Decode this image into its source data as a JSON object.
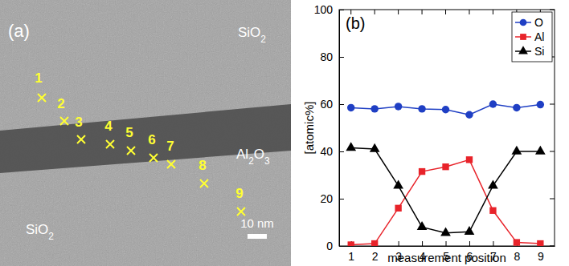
{
  "image_panel": {
    "panel_label": "(a)",
    "regions": [
      {
        "label": "SiO2"
      },
      {
        "label": "Al2O3"
      },
      {
        "label": "SiO2"
      }
    ],
    "points": [
      "1",
      "2",
      "3",
      "4",
      "5",
      "6",
      "7",
      "8",
      "9"
    ],
    "scale_bar": "10 nm"
  },
  "chart_data": {
    "type": "line",
    "title": "(b)",
    "x_label": "measurement position",
    "y_label": "[atomic%]",
    "x": [
      1,
      2,
      3,
      4,
      5,
      6,
      7,
      8,
      9
    ],
    "series": [
      {
        "name": "O",
        "color": "#1f3fc4",
        "marker": "circle",
        "line_style": "solid",
        "values": [
          58.5,
          58,
          59,
          58,
          57.7,
          55.5,
          60,
          58.5,
          59.8
        ]
      },
      {
        "name": "Al",
        "color": "#e8232a",
        "marker": "square",
        "line_style": "solid",
        "values": [
          0.5,
          1,
          16,
          31.5,
          33.5,
          36.5,
          15,
          1.5,
          1
        ]
      },
      {
        "name": "Si",
        "color": "#000000",
        "marker": "triangle",
        "line_style": "solid",
        "values": [
          41.5,
          41,
          25.5,
          8,
          5.5,
          6,
          25.5,
          40,
          40
        ]
      }
    ],
    "xlim": [
      0.5,
      9.6
    ],
    "xticks": [
      1,
      2,
      3,
      4,
      5,
      6,
      7,
      8,
      9
    ],
    "ylim": [
      0,
      100
    ],
    "yticks": [
      0,
      20,
      40,
      60,
      80,
      100
    ],
    "legend": "upper right",
    "grid": false
  }
}
